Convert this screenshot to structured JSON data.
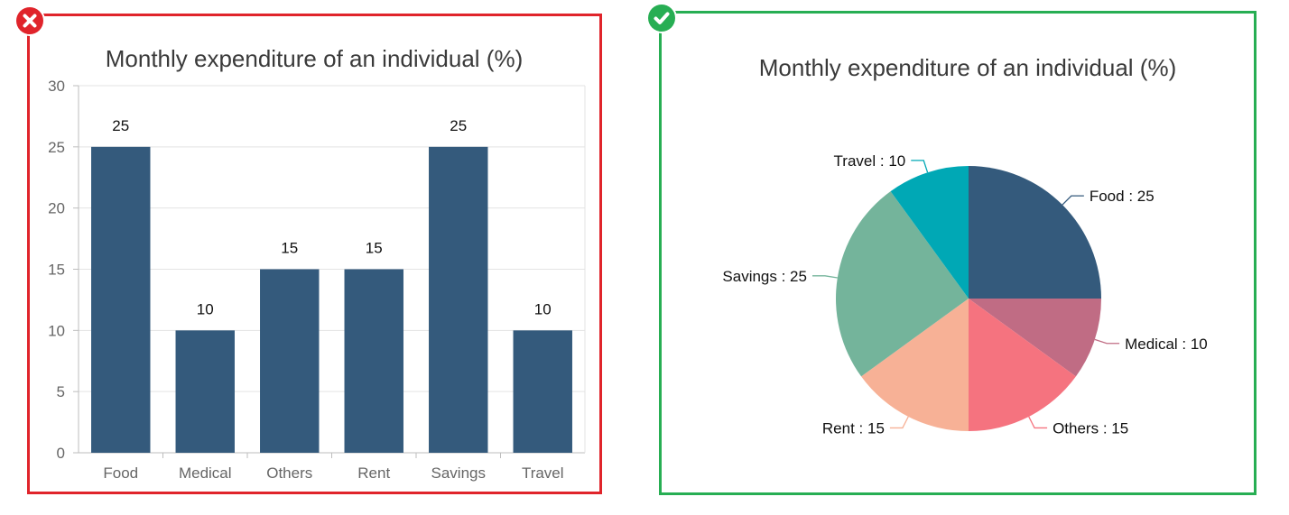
{
  "colors": {
    "bad_frame": "#e0242b",
    "good_frame": "#27ae53",
    "bar_fill": "#345a7c",
    "grid": "#e3e3e3",
    "axis_text": "#666666",
    "title_text": "#3a3a3a"
  },
  "icons": {
    "bad": "cross-icon",
    "good": "check-icon"
  },
  "chart_data": [
    {
      "type": "bar",
      "title": "Monthly expenditure of an individual (%)",
      "categories": [
        "Food",
        "Medical",
        "Others",
        "Rent",
        "Savings",
        "Travel"
      ],
      "values": [
        25,
        10,
        15,
        15,
        25,
        10
      ],
      "data_labels": [
        "25",
        "10",
        "15",
        "15",
        "25",
        "10"
      ],
      "ylim": [
        0,
        30
      ],
      "yticks": [
        "0",
        "5",
        "10",
        "15",
        "20",
        "25",
        "30"
      ],
      "xlabel": "",
      "ylabel": "",
      "grid": true,
      "legend": "none",
      "color": "#345a7c"
    },
    {
      "type": "pie",
      "title": "Monthly expenditure of an individual (%)",
      "slices": [
        {
          "label": "Food",
          "value": 25,
          "color": "#345a7c",
          "display": "Food : 25"
        },
        {
          "label": "Medical",
          "value": 10,
          "color": "#c06c84",
          "display": "Medical : 10"
        },
        {
          "label": "Others",
          "value": 15,
          "color": "#f5737f",
          "display": "Others : 15"
        },
        {
          "label": "Rent",
          "value": 15,
          "color": "#f7b196",
          "display": "Rent : 15"
        },
        {
          "label": "Savings",
          "value": 25,
          "color": "#74b49b",
          "display": "Savings : 25"
        },
        {
          "label": "Travel",
          "value": 10,
          "color": "#00a8b5",
          "display": "Travel : 10"
        }
      ],
      "legend": "none"
    }
  ]
}
